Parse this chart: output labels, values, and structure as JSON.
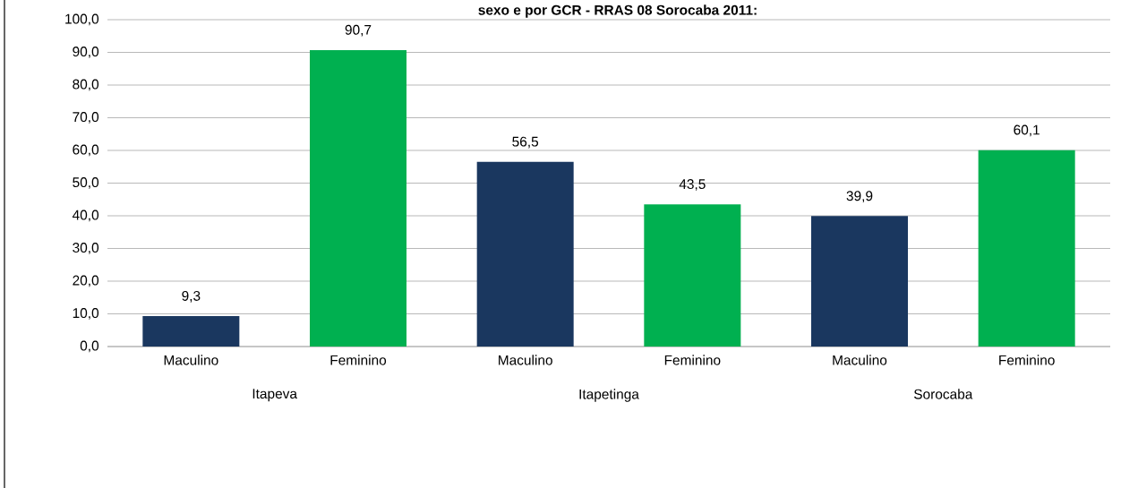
{
  "chart_data": {
    "type": "bar",
    "title": "sexo e por GCR -  RRAS 08 Sorocaba  2011:",
    "categories": [
      "Maculino",
      "Feminino",
      "Maculino",
      "Feminino",
      "Maculino",
      "Feminino"
    ],
    "values": [
      9.3,
      90.7,
      56.5,
      43.5,
      39.9,
      60.1
    ],
    "colors": [
      "#1a375f",
      "#00b050",
      "#1a375f",
      "#00b050",
      "#1a375f",
      "#00b050"
    ],
    "value_labels": [
      "9,3",
      "90,7",
      "56,5",
      "43,5",
      "39,9",
      "60,1"
    ],
    "annotations": [
      "Itapeva",
      "Itapetinga",
      "Sorocaba"
    ],
    "ylim": [
      0,
      100
    ],
    "yticks": [
      {
        "value": 0,
        "label": "0,0"
      },
      {
        "value": 10,
        "label": "10,0"
      },
      {
        "value": 20,
        "label": "20,0"
      },
      {
        "value": 30,
        "label": "30,0"
      },
      {
        "value": 40,
        "label": "40,0"
      },
      {
        "value": 50,
        "label": "50,0"
      },
      {
        "value": 60,
        "label": "60,0"
      },
      {
        "value": 70,
        "label": "70,0"
      },
      {
        "value": 80,
        "label": "80,0"
      },
      {
        "value": 90,
        "label": "90,0"
      },
      {
        "value": 100,
        "label": "100,0"
      }
    ],
    "grid": "y"
  }
}
